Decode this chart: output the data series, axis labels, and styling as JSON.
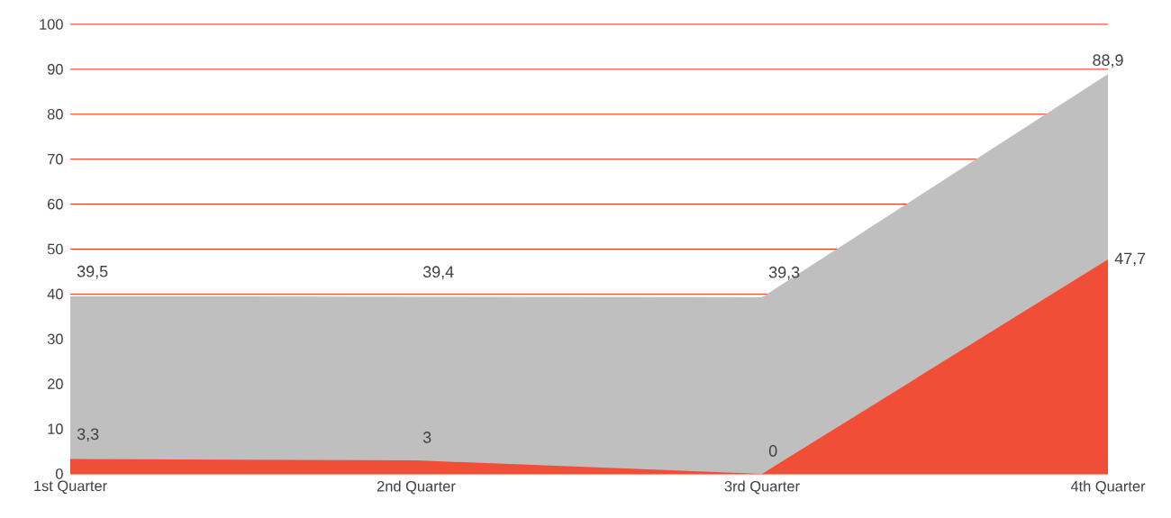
{
  "chart_data": {
    "type": "area",
    "categories": [
      "1st Quarter",
      "2nd Quarter",
      "3rd Quarter",
      "4th Quarter"
    ],
    "series": [
      {
        "color": "#bfbfbf",
        "values": [
          39.5,
          39.4,
          39.3,
          88.9
        ],
        "value_labels": [
          "39,5",
          "39,4",
          "39,3",
          "88,9"
        ]
      },
      {
        "color": "#f04e37",
        "values": [
          3.3,
          3,
          0,
          47.7
        ],
        "value_labels": [
          "3,3",
          "3",
          "0",
          "47,7"
        ]
      }
    ],
    "ylim": [
      0,
      100
    ],
    "yticks": [
      0,
      10,
      20,
      30,
      40,
      50,
      60,
      70,
      80,
      90,
      100
    ],
    "grid": "y"
  }
}
